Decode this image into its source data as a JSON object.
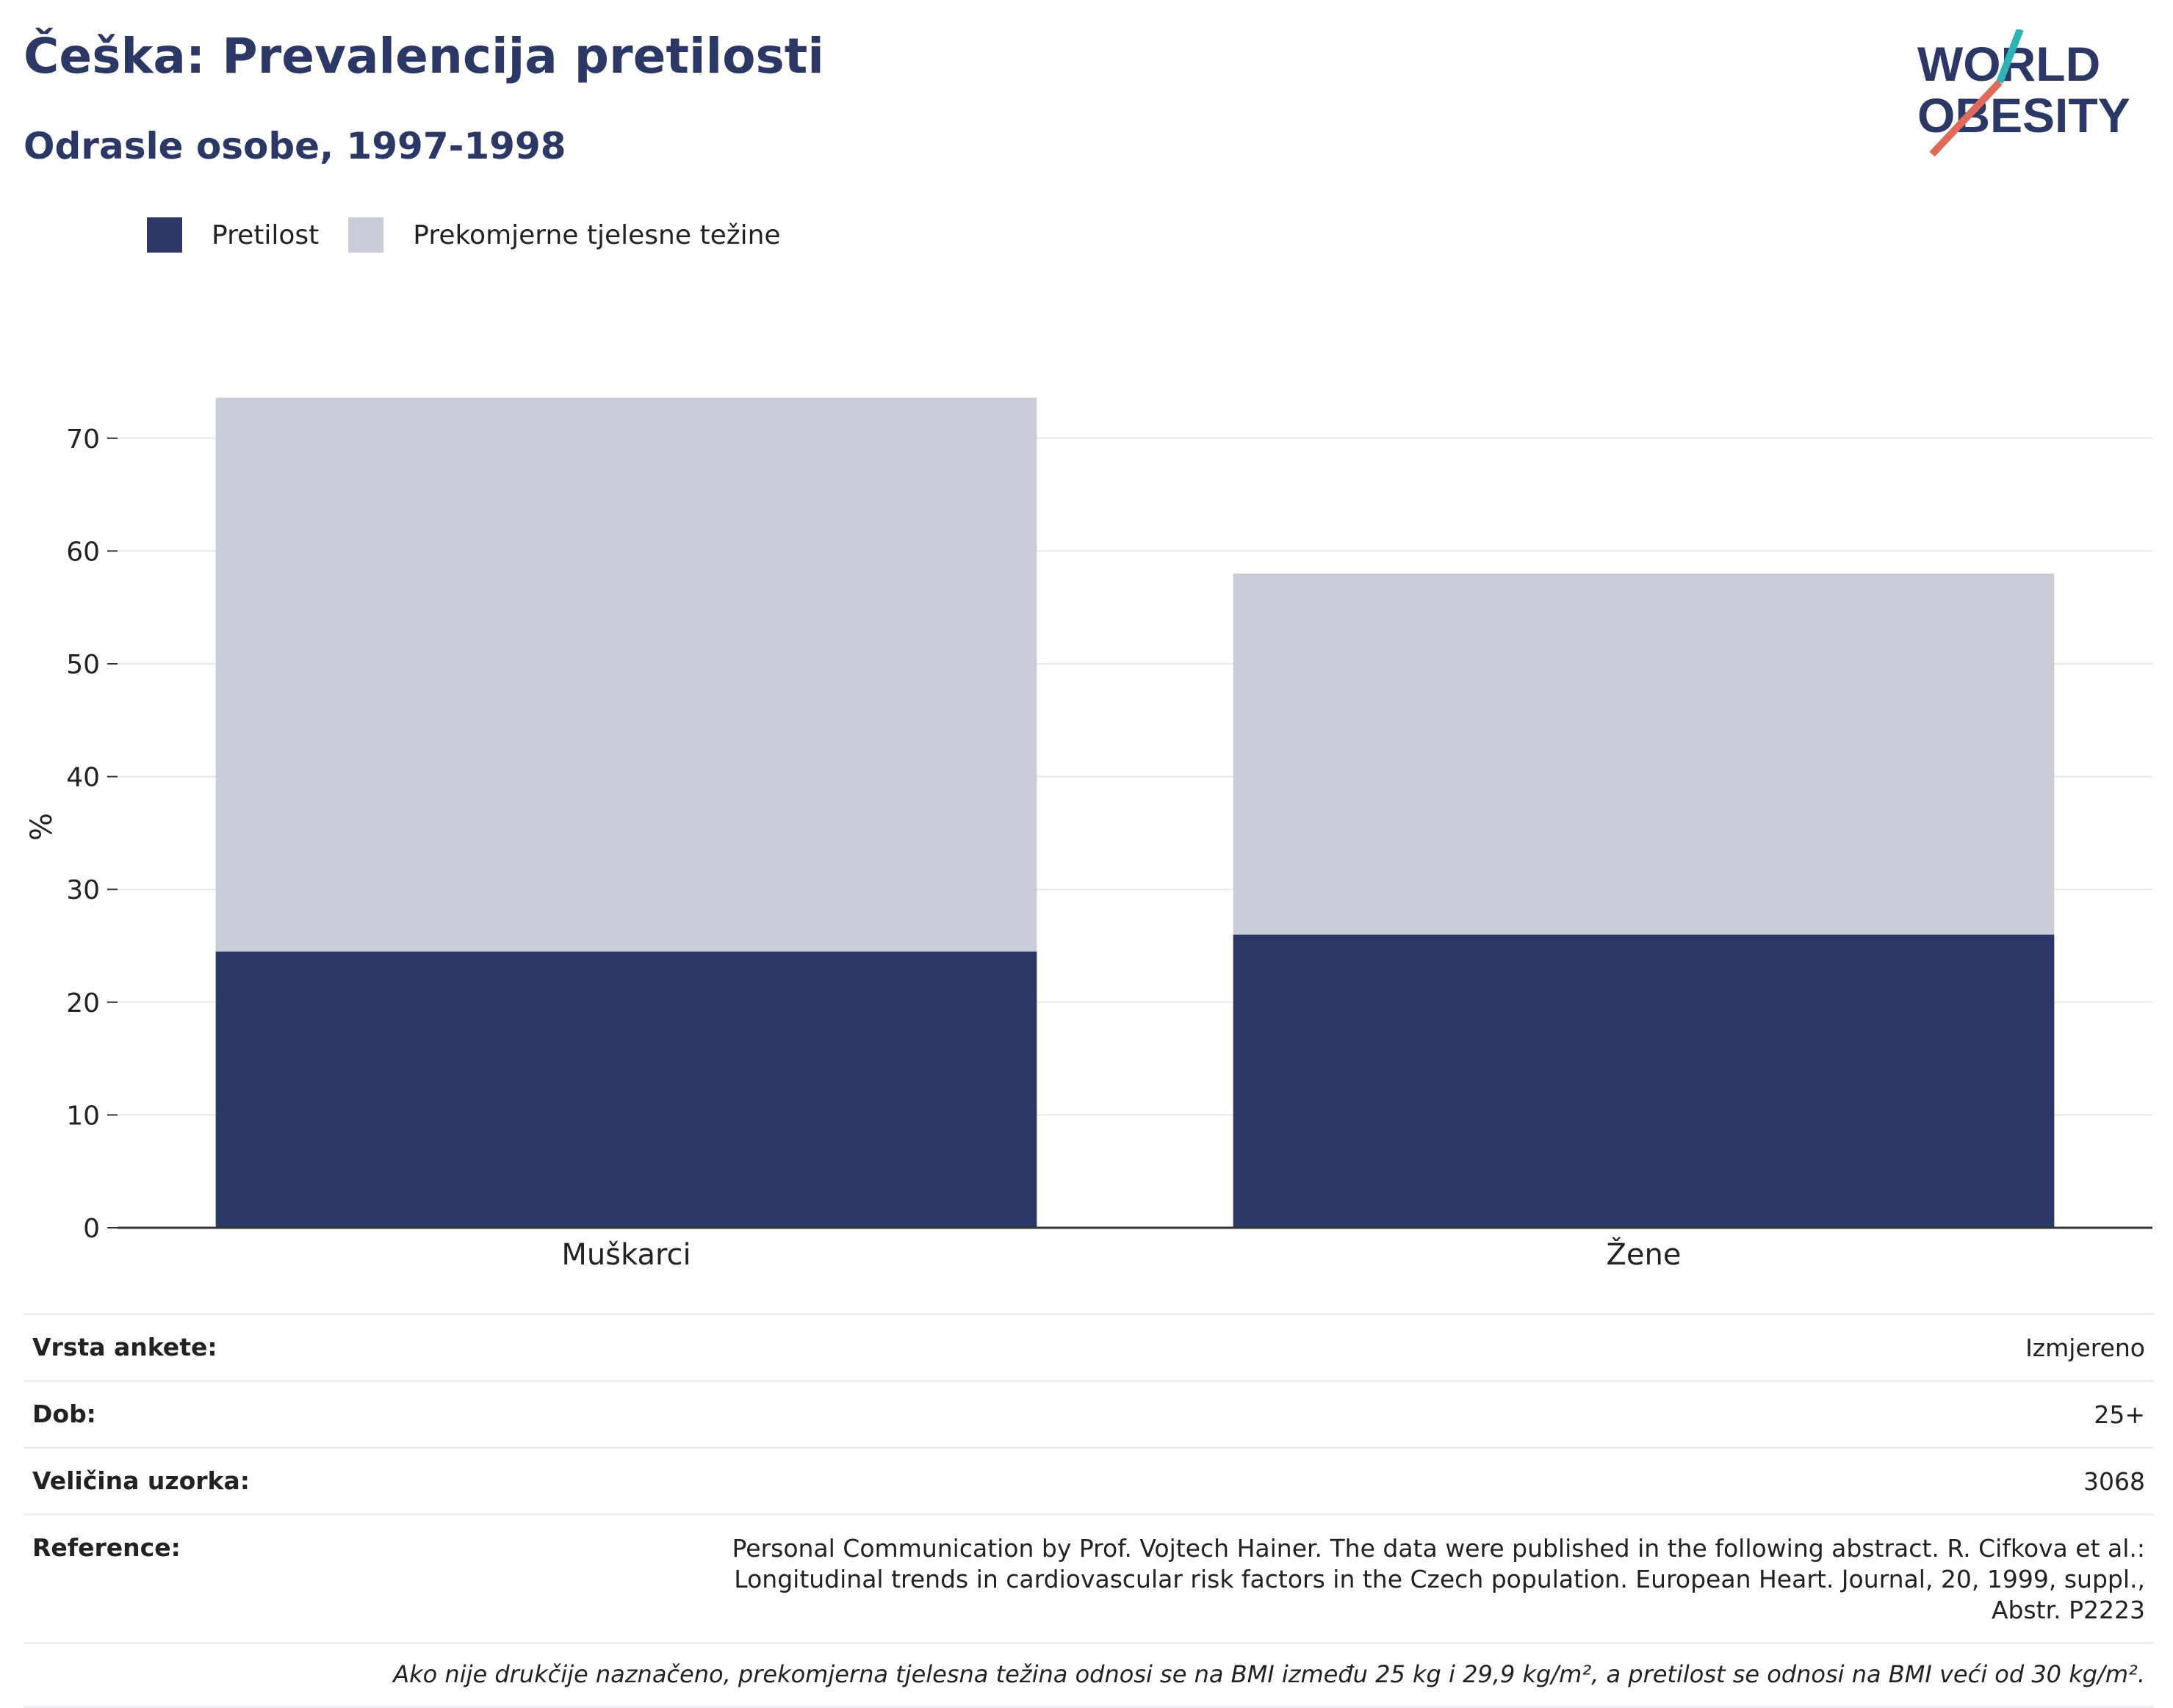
{
  "header": {
    "title": "Češka: Prevalencija pretilosti",
    "subtitle": "Odrasle osobe, 1997-1998"
  },
  "logo": {
    "line1": "WORLD",
    "line2": "OBESITY"
  },
  "legend": {
    "items": [
      {
        "label": "Pretilost",
        "color": "#2b3765"
      },
      {
        "label": "Prekomjerne tjelesne težine",
        "color": "#cacdd8"
      }
    ]
  },
  "chart_data": {
    "type": "bar",
    "stacked": true,
    "categories": [
      "Muškarci",
      "Žene"
    ],
    "series": [
      {
        "name": "Pretilost",
        "color": "#2b3765",
        "values": [
          24.5,
          26.0
        ]
      },
      {
        "name": "Prekomjerne tjelesne težine",
        "color": "#cacdd8",
        "values": [
          49.1,
          32.0
        ]
      }
    ],
    "ylabel": "%",
    "ylim": [
      0,
      75
    ],
    "yticks": [
      0,
      10,
      20,
      30,
      40,
      50,
      60,
      70
    ],
    "grid": true,
    "legend_position": "top-left"
  },
  "info": {
    "survey_type": {
      "label": "Vrsta ankete:",
      "value": "Izmjereno"
    },
    "age": {
      "label": "Dob:",
      "value": "25+"
    },
    "sample_size": {
      "label": "Veličina uzorka:",
      "value": "3068"
    },
    "reference": {
      "label": "Reference:",
      "value": "Personal Communication by Prof. Vojtech Hainer. The data were published in the following abstract. R. Cifkova et al.: Longitudinal trends in cardiovascular risk factors in the Czech population. European Heart. Journal, 20, 1999, suppl., Abstr. P2223"
    },
    "note": "Ako nije drukčije naznačeno, prekomjerna tjelesna težina odnosi se na BMI između 25 kg i 29,9 kg/m², a pretilost se odnosi na BMI veći od 30 kg/m²."
  }
}
